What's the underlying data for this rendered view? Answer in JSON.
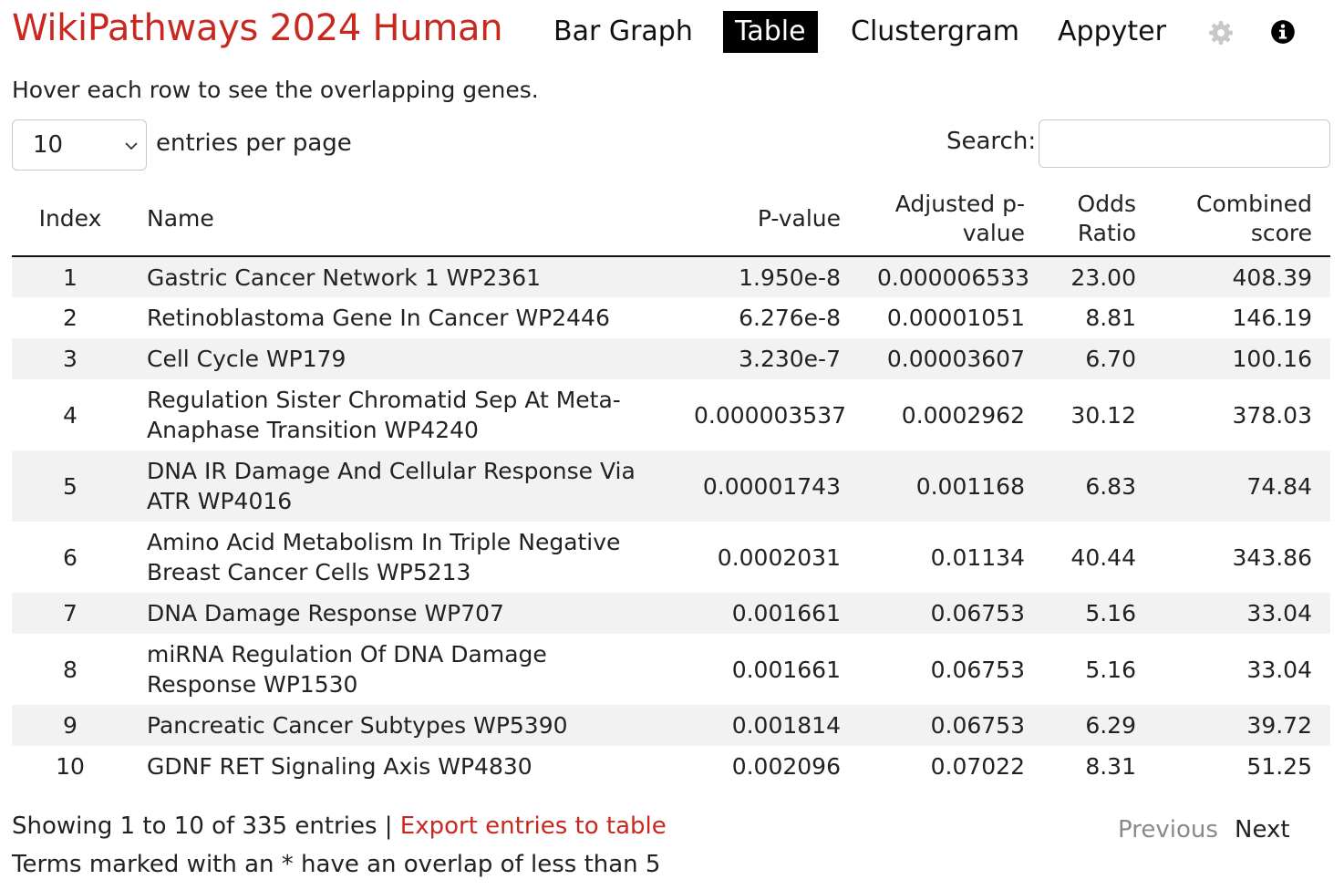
{
  "header": {
    "title": "WikiPathways 2024 Human",
    "nav": [
      {
        "label": "Bar Graph",
        "active": false
      },
      {
        "label": "Table",
        "active": true
      },
      {
        "label": "Clustergram",
        "active": false
      },
      {
        "label": "Appyter",
        "active": false
      }
    ],
    "icons": [
      "gear-icon",
      "info-icon"
    ]
  },
  "hint": "Hover each row to see the overlapping genes.",
  "controls": {
    "page_length": "10",
    "page_length_label": "entries per page",
    "search_label": "Search:",
    "search_value": ""
  },
  "table": {
    "columns": [
      "Index",
      "Name",
      "P-value",
      "Adjusted p-value",
      "Odds Ratio",
      "Combined score"
    ],
    "rows": [
      {
        "index": "1",
        "name": "Gastric Cancer Network 1 WP2361",
        "p_value": "1.950e-8",
        "adj_p_value": "0.000006533",
        "odds_ratio": "23.00",
        "combined_score": "408.39"
      },
      {
        "index": "2",
        "name": "Retinoblastoma Gene In Cancer WP2446",
        "p_value": "6.276e-8",
        "adj_p_value": "0.00001051",
        "odds_ratio": "8.81",
        "combined_score": "146.19"
      },
      {
        "index": "3",
        "name": "Cell Cycle WP179",
        "p_value": "3.230e-7",
        "adj_p_value": "0.00003607",
        "odds_ratio": "6.70",
        "combined_score": "100.16"
      },
      {
        "index": "4",
        "name": "Regulation Sister Chromatid Sep At Meta-Anaphase Transition WP4240",
        "p_value": "0.000003537",
        "adj_p_value": "0.0002962",
        "odds_ratio": "30.12",
        "combined_score": "378.03"
      },
      {
        "index": "5",
        "name": "DNA IR Damage And Cellular Response Via ATR WP4016",
        "p_value": "0.00001743",
        "adj_p_value": "0.001168",
        "odds_ratio": "6.83",
        "combined_score": "74.84"
      },
      {
        "index": "6",
        "name": "Amino Acid Metabolism In Triple Negative Breast Cancer Cells WP5213",
        "p_value": "0.0002031",
        "adj_p_value": "0.01134",
        "odds_ratio": "40.44",
        "combined_score": "343.86"
      },
      {
        "index": "7",
        "name": "DNA Damage Response WP707",
        "p_value": "0.001661",
        "adj_p_value": "0.06753",
        "odds_ratio": "5.16",
        "combined_score": "33.04"
      },
      {
        "index": "8",
        "name": "miRNA Regulation Of DNA Damage Response WP1530",
        "p_value": "0.001661",
        "adj_p_value": "0.06753",
        "odds_ratio": "5.16",
        "combined_score": "33.04"
      },
      {
        "index": "9",
        "name": "Pancreatic Cancer Subtypes WP5390",
        "p_value": "0.001814",
        "adj_p_value": "0.06753",
        "odds_ratio": "6.29",
        "combined_score": "39.72"
      },
      {
        "index": "10",
        "name": "GDNF RET Signaling Axis WP4830",
        "p_value": "0.002096",
        "adj_p_value": "0.07022",
        "odds_ratio": "8.31",
        "combined_score": "51.25"
      }
    ]
  },
  "footer": {
    "info": "Showing 1 to 10 of 335 entries",
    "separator": " | ",
    "export_label": "Export entries to table",
    "note": "Terms marked with an * have an overlap of less than 5",
    "pagination": {
      "previous": "Previous",
      "next": "Next"
    }
  },
  "colors": {
    "accent": "#c8281f",
    "stripe": "#f2f2f2",
    "active_tab_bg": "#000000",
    "disabled_text": "#8a8a8a",
    "icon": "#c8c8c8"
  }
}
